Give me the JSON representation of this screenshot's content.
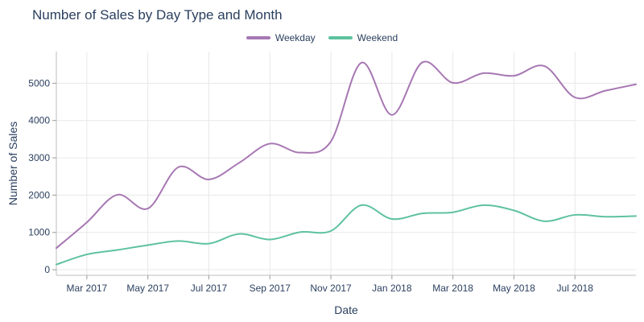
{
  "chart_data": {
    "type": "line",
    "title": "Number of Sales by Day Type and Month",
    "xlabel": "Date",
    "ylabel": "Number of Sales",
    "x": [
      "2017-02",
      "2017-03",
      "2017-04",
      "2017-05",
      "2017-06",
      "2017-07",
      "2017-08",
      "2017-09",
      "2017-10",
      "2017-11",
      "2017-12",
      "2018-01",
      "2018-02",
      "2018-03",
      "2018-04",
      "2018-05",
      "2018-06",
      "2018-07",
      "2018-08",
      "2018-09"
    ],
    "x_tick_labels": [
      "Mar 2017",
      "May 2017",
      "Jul 2017",
      "Sep 2017",
      "Nov 2017",
      "Jan 2018",
      "Mar 2018",
      "May 2018",
      "Jul 2018"
    ],
    "x_tick_dates": [
      "2017-03",
      "2017-05",
      "2017-07",
      "2017-09",
      "2017-11",
      "2018-01",
      "2018-03",
      "2018-05",
      "2018-07"
    ],
    "y_ticks": [
      0,
      1000,
      2000,
      3000,
      4000,
      5000
    ],
    "ylim": [
      -150,
      5850
    ],
    "xlim": [
      "2017-02",
      "2018-09"
    ],
    "grid": true,
    "legend_position": "top-center",
    "series": [
      {
        "name": "Weekday",
        "color": "#a777b3",
        "values": [
          580,
          1270,
          2010,
          1640,
          2750,
          2420,
          2870,
          3380,
          3140,
          3440,
          5550,
          4150,
          5560,
          5010,
          5270,
          5200,
          5460,
          4620,
          4800,
          4970
        ]
      },
      {
        "name": "Weekend",
        "color": "#5ec29f",
        "values": [
          140,
          410,
          530,
          660,
          770,
          700,
          960,
          810,
          1010,
          1040,
          1730,
          1360,
          1510,
          1540,
          1730,
          1590,
          1300,
          1470,
          1420,
          1440
        ]
      }
    ]
  }
}
